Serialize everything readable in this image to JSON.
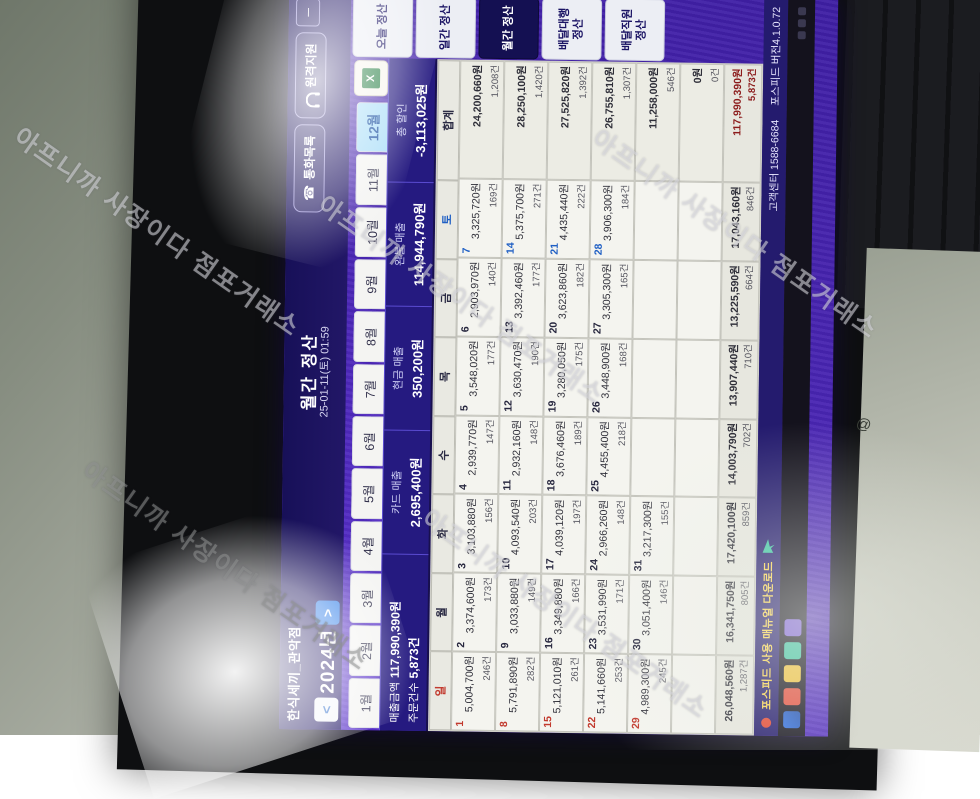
{
  "watermark": {
    "text": "아프니까 사장이다 점포거래소"
  },
  "titlebar": {
    "store_name": "한식세끼_관악점",
    "title": "월간 정산",
    "datetime": "25-01-11(토) 01:59",
    "call_list_label": "통화목록",
    "remote_support_label": "원격지원",
    "minimize_label": "─",
    "prev_label": "<",
    "year": "2024년",
    "next_label": ">"
  },
  "tabs": {
    "months": [
      "1월",
      "2월",
      "3월",
      "4월",
      "5월",
      "6월",
      "7월",
      "8월",
      "9월",
      "10월",
      "11월",
      "12월"
    ],
    "active": "12월",
    "excel_label": "X"
  },
  "summary": {
    "sales_label": "매출금액",
    "sales_value": "117,990,390원",
    "orders_label": "주문건수",
    "orders_value": "5,873건",
    "items": [
      {
        "label": "카드 매출",
        "value": "2,695,400원"
      },
      {
        "label": "현금 매출",
        "value": "350,200원"
      },
      {
        "label": "완불 매출",
        "value": "114,944,790원"
      },
      {
        "label": "총 할인",
        "value": "-3,113,025원"
      }
    ]
  },
  "sidebar": {
    "items": [
      "오늘 정산",
      "일간 정산",
      "월간 정산",
      "배달대행 정산",
      "배달직원 정산"
    ],
    "active": "월간 정산"
  },
  "calendar": {
    "headers": [
      "일",
      "월",
      "화",
      "수",
      "목",
      "금",
      "토",
      "합계"
    ],
    "weeks": [
      [
        {
          "d": "1",
          "a": "5,004,700원",
          "c": "246건"
        },
        {
          "d": "2",
          "a": "3,374,600원",
          "c": "173건"
        },
        {
          "d": "3",
          "a": "3,103,880원",
          "c": "156건"
        },
        {
          "d": "4",
          "a": "2,939,770원",
          "c": "147건"
        },
        {
          "d": "5",
          "a": "3,548,020원",
          "c": "177건"
        },
        {
          "d": "6",
          "a": "2,903,970원",
          "c": "140건"
        },
        {
          "d": "7",
          "a": "3,325,720원",
          "c": "169건"
        },
        {
          "a": "24,200,660원",
          "c": "1,208건",
          "sum": true
        }
      ],
      [
        {
          "d": "8",
          "a": "5,791,890원",
          "c": "282건"
        },
        {
          "d": "9",
          "a": "3,033,880원",
          "c": "149건"
        },
        {
          "d": "10",
          "a": "4,093,540원",
          "c": "203건"
        },
        {
          "d": "11",
          "a": "2,932,160원",
          "c": "148건"
        },
        {
          "d": "12",
          "a": "3,630,470원",
          "c": "190건"
        },
        {
          "d": "13",
          "a": "3,392,460원",
          "c": "177건"
        },
        {
          "d": "14",
          "a": "5,375,700원",
          "c": "271건"
        },
        {
          "a": "28,250,100원",
          "c": "1,420건",
          "sum": true
        }
      ],
      [
        {
          "d": "15",
          "a": "5,121,010원",
          "c": "261건"
        },
        {
          "d": "16",
          "a": "3,349,880원",
          "c": "166건"
        },
        {
          "d": "17",
          "a": "4,039,120원",
          "c": "197건"
        },
        {
          "d": "18",
          "a": "3,676,460원",
          "c": "189건"
        },
        {
          "d": "19",
          "a": "3,280,050원",
          "c": "175건"
        },
        {
          "d": "20",
          "a": "3,623,860원",
          "c": "182건"
        },
        {
          "d": "21",
          "a": "4,435,440원",
          "c": "222건"
        },
        {
          "a": "27,525,820원",
          "c": "1,392건",
          "sum": true
        }
      ],
      [
        {
          "d": "22",
          "a": "5,141,660원",
          "c": "253건"
        },
        {
          "d": "23",
          "a": "3,531,990원",
          "c": "171건"
        },
        {
          "d": "24",
          "a": "2,966,260원",
          "c": "148건"
        },
        {
          "d": "25",
          "a": "4,455,400원",
          "c": "218건"
        },
        {
          "d": "26",
          "a": "3,448,900원",
          "c": "168건"
        },
        {
          "d": "27",
          "a": "3,305,300원",
          "c": "165건"
        },
        {
          "d": "28",
          "a": "3,906,300원",
          "c": "184건"
        },
        {
          "a": "26,755,810원",
          "c": "1,307건",
          "sum": true
        }
      ],
      [
        {
          "d": "29",
          "a": "4,989,300원",
          "c": "245건"
        },
        {
          "d": "30",
          "a": "3,051,400원",
          "c": "146건"
        },
        {
          "d": "31",
          "a": "3,217,300원",
          "c": "155건"
        },
        {},
        {},
        {},
        {},
        {
          "a": "11,258,000원",
          "c": "546건",
          "sum": true
        }
      ],
      [
        {},
        {},
        {},
        {},
        {},
        {},
        {},
        {
          "a": "0원",
          "c": "0건",
          "sum": true
        }
      ]
    ],
    "totals": [
      {
        "a": "26,048,560원",
        "c": "1,287건"
      },
      {
        "a": "16,341,750원",
        "c": "805건"
      },
      {
        "a": "17,420,100원",
        "c": "859건"
      },
      {
        "a": "14,003,790원",
        "c": "702건"
      },
      {
        "a": "13,907,440원",
        "c": "710건"
      },
      {
        "a": "13,225,590원",
        "c": "664건"
      },
      {
        "a": "17,043,160원",
        "c": "846건"
      },
      {
        "a": "117,990,390원",
        "c": "5,873건",
        "grand": true
      }
    ]
  },
  "footer": {
    "notice": "포스피드 사용 매뉴얼 다운로드",
    "cs_center": "고객센터 1588-6684",
    "version": "포스피드 버전4.1.0.72"
  }
}
